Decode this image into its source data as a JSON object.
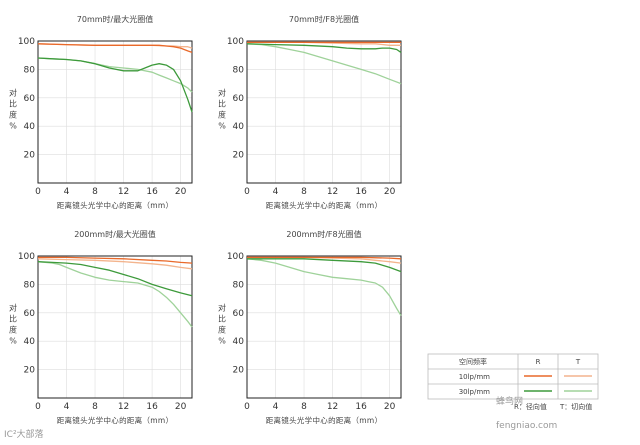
{
  "colors": {
    "r_10lp": "#e9692a",
    "t_10lp": "#f3b48d",
    "r_30lp": "#3d9a3b",
    "t_30lp": "#9fd29a",
    "axis": "#222222",
    "grid": "#dddddd"
  },
  "legend": {
    "header_freq": "空间频率",
    "header_r": "R",
    "header_t": "T",
    "row1": "10lp/mm",
    "row2": "30lp/mm",
    "note_r": "R：径向值",
    "note_t": "T：切向值"
  },
  "watermarks": {
    "left": "IC²大部落",
    "right": "蜂鸟网",
    "right_sub": "fengniao.com"
  },
  "chart_data": [
    {
      "type": "line",
      "title": "70mm时/最大光圈值",
      "xlabel": "距离镜头光学中心的距离（mm）",
      "ylabel": "对比度%",
      "xlim": [
        0,
        21.6
      ],
      "ylim": [
        0,
        100
      ],
      "xticks": [
        0,
        4,
        8,
        12,
        16,
        20
      ],
      "yticks": [
        20,
        40,
        60,
        80,
        100
      ],
      "series": [
        {
          "key": "r_10lp",
          "x": [
            0,
            4,
            8,
            12,
            14,
            16,
            17,
            18,
            19,
            20,
            21,
            21.6
          ],
          "y": [
            98,
            97.5,
            97,
            97,
            97,
            97,
            97,
            96.5,
            96,
            95,
            93,
            92
          ]
        },
        {
          "key": "t_10lp",
          "x": [
            0,
            4,
            8,
            12,
            16,
            18,
            19,
            20,
            21,
            21.6
          ],
          "y": [
            98,
            97.5,
            97,
            97,
            97,
            96.5,
            96.5,
            96,
            96,
            95
          ]
        },
        {
          "key": "r_30lp",
          "x": [
            0,
            2,
            4,
            6,
            8,
            10,
            12,
            14,
            15,
            16,
            17,
            18,
            19,
            20,
            21,
            21.6
          ],
          "y": [
            88,
            87.5,
            87,
            86,
            84,
            81,
            79,
            79,
            81,
            83,
            84,
            83,
            80,
            72,
            59,
            50
          ]
        },
        {
          "key": "t_30lp",
          "x": [
            0,
            2,
            4,
            6,
            8,
            10,
            12,
            14,
            16,
            17,
            18,
            19,
            20,
            21,
            21.6
          ],
          "y": [
            88,
            87.5,
            87,
            86,
            84,
            82,
            81,
            80,
            78,
            76,
            74,
            72,
            70,
            67,
            64
          ]
        }
      ]
    },
    {
      "type": "line",
      "title": "70mm时/F8光圈值",
      "xlabel": "距离镜头光学中心的距离（mm）",
      "ylabel": "对比度%",
      "xlim": [
        0,
        21.6
      ],
      "ylim": [
        0,
        100
      ],
      "xticks": [
        0,
        4,
        8,
        12,
        16,
        20
      ],
      "yticks": [
        20,
        40,
        60,
        80,
        100
      ],
      "series": [
        {
          "key": "r_10lp",
          "x": [
            0,
            4,
            8,
            12,
            16,
            20,
            21.6
          ],
          "y": [
            99,
            99,
            99,
            99,
            99,
            99,
            99
          ]
        },
        {
          "key": "t_10lp",
          "x": [
            0,
            4,
            8,
            12,
            16,
            18,
            20,
            21.6
          ],
          "y": [
            99,
            99,
            99,
            98.5,
            98,
            98,
            97,
            97
          ]
        },
        {
          "key": "r_30lp",
          "x": [
            0,
            4,
            8,
            12,
            14,
            16,
            18,
            19,
            20,
            21,
            21.6
          ],
          "y": [
            98,
            97.5,
            97,
            96,
            95,
            94.5,
            94.5,
            95,
            95,
            94,
            92
          ]
        },
        {
          "key": "t_30lp",
          "x": [
            0,
            2,
            4,
            6,
            8,
            10,
            12,
            14,
            16,
            18,
            20,
            21.6
          ],
          "y": [
            98,
            97.5,
            96,
            94,
            92,
            89,
            86,
            83,
            80,
            77,
            73,
            70
          ]
        }
      ]
    },
    {
      "type": "line",
      "title": "200mm时/最大光圈值",
      "xlabel": "距离镜头光学中心的距离（mm）",
      "ylabel": "对比度%",
      "xlim": [
        0,
        21.6
      ],
      "ylim": [
        0,
        100
      ],
      "xticks": [
        0,
        4,
        8,
        12,
        16,
        20
      ],
      "yticks": [
        20,
        40,
        60,
        80,
        100
      ],
      "series": [
        {
          "key": "r_10lp",
          "x": [
            0,
            4,
            8,
            12,
            16,
            18,
            20,
            21.6
          ],
          "y": [
            99,
            99,
            98.5,
            98,
            97,
            96.5,
            95.5,
            95
          ]
        },
        {
          "key": "t_10lp",
          "x": [
            0,
            4,
            8,
            12,
            16,
            18,
            20,
            21.6
          ],
          "y": [
            98,
            97.5,
            97,
            96,
            94.5,
            93.5,
            92,
            91
          ]
        },
        {
          "key": "r_30lp",
          "x": [
            0,
            2,
            4,
            6,
            8,
            10,
            12,
            14,
            16,
            18,
            20,
            21.6
          ],
          "y": [
            96,
            95.5,
            95,
            94,
            92,
            90,
            87,
            84,
            80,
            77,
            74,
            72
          ]
        },
        {
          "key": "t_30lp",
          "x": [
            0,
            1,
            2,
            3,
            4,
            6,
            8,
            10,
            12,
            14,
            16,
            17,
            18,
            19,
            20,
            21,
            21.6
          ],
          "y": [
            96,
            95.5,
            95,
            94,
            92,
            88,
            85,
            83,
            82,
            81,
            78,
            75,
            71,
            66,
            60,
            54,
            50
          ]
        }
      ]
    },
    {
      "type": "line",
      "title": "200mm时/F8光圈值",
      "xlabel": "距离镜头光学中心的距离（mm）",
      "ylabel": "对比度%",
      "xlim": [
        0,
        21.6
      ],
      "ylim": [
        0,
        100
      ],
      "xticks": [
        0,
        4,
        8,
        12,
        16,
        20
      ],
      "yticks": [
        20,
        40,
        60,
        80,
        100
      ],
      "series": [
        {
          "key": "r_10lp",
          "x": [
            0,
            4,
            8,
            12,
            16,
            20,
            21.6
          ],
          "y": [
            99,
            99,
            99,
            99,
            99,
            98.5,
            98
          ]
        },
        {
          "key": "t_10lp",
          "x": [
            0,
            4,
            8,
            12,
            16,
            18,
            20,
            21.6
          ],
          "y": [
            99,
            99,
            99,
            98.5,
            98,
            97,
            96,
            95
          ]
        },
        {
          "key": "r_30lp",
          "x": [
            0,
            4,
            8,
            12,
            16,
            18,
            20,
            21.6
          ],
          "y": [
            98,
            98,
            98,
            97,
            96,
            95,
            92,
            89
          ]
        },
        {
          "key": "t_30lp",
          "x": [
            0,
            2,
            4,
            6,
            8,
            10,
            12,
            14,
            16,
            17,
            18,
            19,
            20,
            21,
            21.6
          ],
          "y": [
            98,
            97,
            95,
            92,
            89,
            87,
            85,
            84,
            83,
            82,
            81,
            78,
            72,
            63,
            58
          ]
        }
      ]
    }
  ]
}
